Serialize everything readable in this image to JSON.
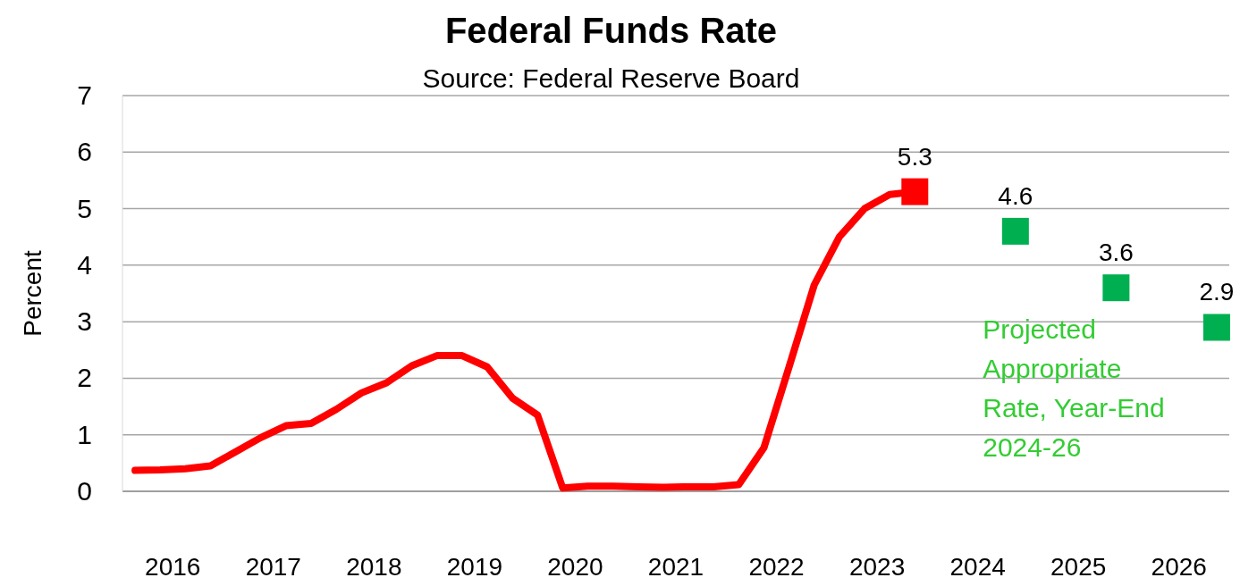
{
  "chart_data": {
    "type": "line",
    "title": "Federal Funds Rate",
    "subtitle": "Source: Federal Reserve Board",
    "ylabel": "Percent",
    "xlim": [
      2016,
      2027
    ],
    "xticks": [
      {
        "value": 2016.5,
        "label": "2016"
      },
      {
        "value": 2017.5,
        "label": "2017"
      },
      {
        "value": 2018.5,
        "label": "2018"
      },
      {
        "value": 2019.5,
        "label": "2019"
      },
      {
        "value": 2020.5,
        "label": "2020"
      },
      {
        "value": 2021.5,
        "label": "2021"
      },
      {
        "value": 2022.5,
        "label": "2022"
      },
      {
        "value": 2023.5,
        "label": "2023"
      },
      {
        "value": 2024.5,
        "label": "2024"
      },
      {
        "value": 2025.5,
        "label": "2025"
      },
      {
        "value": 2026.5,
        "label": "2026"
      }
    ],
    "ylim": [
      0,
      7
    ],
    "yticks": [
      0,
      1,
      2,
      3,
      4,
      5,
      6,
      7
    ],
    "grid": "y",
    "series": [
      {
        "color": "#ff0000",
        "marker": "none",
        "x": [
          2016.125,
          2016.375,
          2016.625,
          2016.875,
          2017.125,
          2017.375,
          2017.625,
          2017.875,
          2018.125,
          2018.375,
          2018.625,
          2018.875,
          2019.125,
          2019.375,
          2019.625,
          2019.875,
          2020.125,
          2020.375,
          2020.625,
          2020.875,
          2021.125,
          2021.375,
          2021.625,
          2021.875,
          2022.125,
          2022.375,
          2022.625,
          2022.875,
          2023.125,
          2023.375,
          2023.625,
          2023.875
        ],
        "values": [
          0.37,
          0.38,
          0.4,
          0.45,
          0.7,
          0.95,
          1.16,
          1.2,
          1.45,
          1.74,
          1.92,
          2.22,
          2.4,
          2.4,
          2.2,
          1.65,
          1.35,
          0.06,
          0.09,
          0.09,
          0.08,
          0.07,
          0.08,
          0.08,
          0.12,
          0.77,
          2.2,
          3.65,
          4.5,
          5.0,
          5.25,
          5.3
        ]
      },
      {
        "type": "scatter",
        "color": "#ff0000",
        "marker": "square",
        "x": [
          2023.875
        ],
        "values": [
          5.3
        ],
        "value_labels": [
          "5.3"
        ]
      },
      {
        "type": "scatter",
        "color": "#00b050",
        "marker": "square",
        "x": [
          2024.875,
          2025.875,
          2026.875
        ],
        "values": [
          4.6,
          3.6,
          2.9
        ],
        "value_labels": [
          "4.6",
          "3.6",
          "2.9"
        ]
      }
    ],
    "annotations": [
      "Projected Appropriate Rate, Year-End 2024-26"
    ]
  }
}
